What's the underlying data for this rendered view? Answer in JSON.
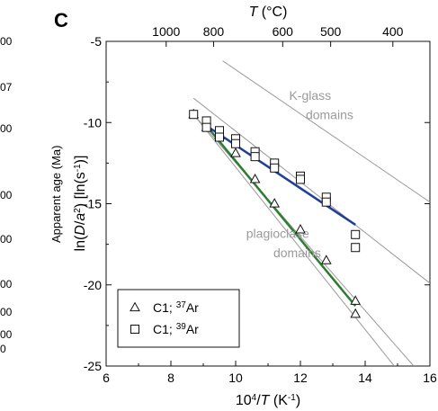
{
  "panel_label": "C",
  "left_panel_fragments": {
    "ticks": [
      "00",
      "07",
      "00",
      "00",
      "00",
      "00",
      "00",
      "00",
      "0"
    ],
    "ylabel": "Apparent age (Ma)"
  },
  "chart_data": {
    "type": "scatter",
    "xlabel": "10⁴/T (K⁻¹)",
    "ylabel": "ln(D/a²) [ln(s⁻¹)]",
    "top_label": "T (°C)",
    "xlim": [
      6,
      16
    ],
    "ylim": [
      -25,
      -5
    ],
    "x_ticks": [
      "6",
      "8",
      "10",
      "12",
      "14",
      "16"
    ],
    "y_ticks": [
      "-5",
      "-10",
      "-15",
      "-20",
      "-25"
    ],
    "top_ticks": [
      {
        "label": "1000",
        "celsius": 1000
      },
      {
        "label": "800",
        "celsius": 800
      },
      {
        "label": "600",
        "celsius": 600
      },
      {
        "label": "500",
        "celsius": 500
      },
      {
        "label": "400",
        "celsius": 400
      }
    ],
    "reference_lines": [
      {
        "name": "K-glass upper bound",
        "x": [
          9.6,
          16
        ],
        "y": [
          -6.2,
          -14.9
        ],
        "color": "#9a9a9a"
      },
      {
        "name": "plagioclase upper bound",
        "x": [
          8.7,
          16
        ],
        "y": [
          -8.5,
          -19.9
        ],
        "color": "#9a9a9a"
      },
      {
        "name": "domain lower 1",
        "x": [
          8.7,
          15.5
        ],
        "y": [
          -9.5,
          -25
        ],
        "color": "#9a9a9a"
      },
      {
        "name": "domain lower 2",
        "x": [
          8.7,
          14.9
        ],
        "y": [
          -9.5,
          -25
        ],
        "color": "#9a9a9a"
      }
    ],
    "annotations": [
      {
        "text": "K-glass",
        "x": 12.3,
        "y": -8.6,
        "color": "#9a9a9a"
      },
      {
        "text": "domains",
        "x": 12.9,
        "y": -9.8,
        "color": "#9a9a9a"
      },
      {
        "text": "plagioclase",
        "x": 11.3,
        "y": -17.1,
        "color": "#9a9a9a"
      },
      {
        "text": "domains",
        "x": 11.9,
        "y": -18.3,
        "color": "#9a9a9a"
      }
    ],
    "series": [
      {
        "name": "C1; ³⁷Ar",
        "marker": "triangle",
        "x": [
          8.7,
          9.1,
          9.5,
          10.0,
          10.6,
          11.2,
          12.0,
          12.8,
          13.7,
          13.7
        ],
        "y": [
          -9.5,
          -10.3,
          -10.8,
          -11.9,
          -13.5,
          -15.0,
          -16.6,
          -18.5,
          -21.0,
          -21.8
        ]
      },
      {
        "name": "C1; ³⁹Ar",
        "marker": "square",
        "x": [
          8.7,
          9.1,
          9.1,
          9.5,
          9.5,
          10.0,
          10.0,
          10.6,
          10.6,
          11.2,
          11.2,
          12.0,
          12.0,
          12.8,
          12.8,
          13.7,
          13.7
        ],
        "y": [
          -9.5,
          -9.9,
          -10.3,
          -10.5,
          -10.9,
          -11.0,
          -11.3,
          -11.8,
          -12.1,
          -12.5,
          -12.8,
          -13.3,
          -13.5,
          -14.6,
          -14.9,
          -16.9,
          -17.7
        ]
      }
    ],
    "fit_lines": [
      {
        "series": "C1; ³⁷Ar",
        "x": [
          9.1,
          13.7
        ],
        "y": [
          -10.2,
          -21.3
        ],
        "color": "#2e7d32"
      },
      {
        "series": "C1; ³⁹Ar",
        "x": [
          9.1,
          13.7
        ],
        "y": [
          -10.2,
          -16.3
        ],
        "color": "#1f3f99"
      }
    ],
    "legend": {
      "placement": "bottom-left",
      "entries": [
        {
          "marker": "triangle",
          "prefix": "C1; ",
          "sup": "37",
          "suffix": "Ar"
        },
        {
          "marker": "square",
          "prefix": "C1; ",
          "sup": "39",
          "suffix": "Ar"
        }
      ]
    },
    "grid": false
  }
}
